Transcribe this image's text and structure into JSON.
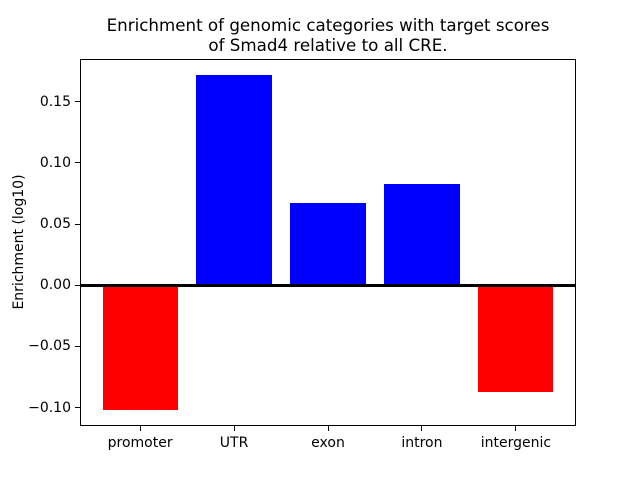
{
  "title": {
    "line1": "Enrichment of genomic categories with target scores",
    "line2": "of Smad4 relative to all CRE."
  },
  "chart_data": {
    "type": "bar",
    "title": "Enrichment of genomic categories with target scores of Smad4 relative to all CRE.",
    "xlabel": "",
    "ylabel": "Enrichment (log10)",
    "categories": [
      "promoter",
      "UTR",
      "exon",
      "intron",
      "intergenic"
    ],
    "values": [
      -0.102,
      0.172,
      0.067,
      0.083,
      -0.087
    ],
    "xlim": [
      -0.64,
      4.64
    ],
    "ylim": [
      -0.115,
      0.185
    ],
    "yticks": [
      0.15,
      0.1,
      0.05,
      0.0,
      -0.05,
      -0.1
    ],
    "ytick_labels": [
      "0.15",
      "0.10",
      "0.05",
      "0.00",
      "−0.05",
      "−0.10"
    ],
    "bar_width": 0.8,
    "positive_color": "#0000ff",
    "negative_color": "#ff0000",
    "zero_line_color": "#000000",
    "grid": false,
    "legend": null
  }
}
